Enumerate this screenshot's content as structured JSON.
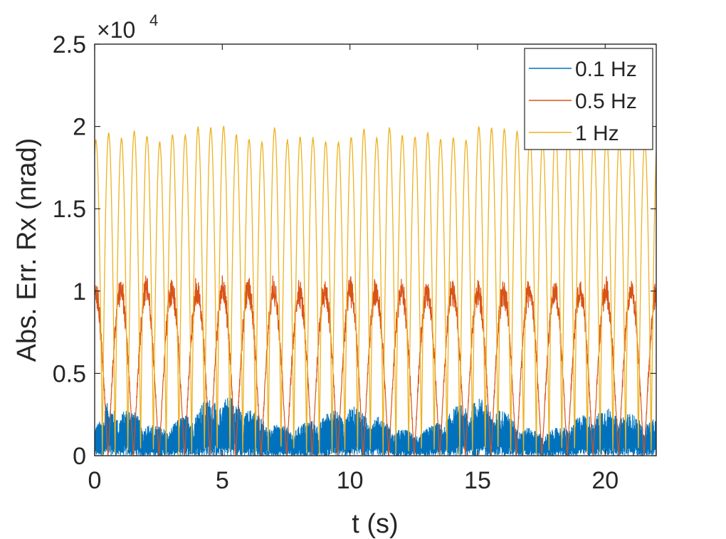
{
  "chart_data": {
    "type": "line",
    "xlabel": "t (s)",
    "ylabel": "Abs. Err. Rx (nrad)",
    "xlim": [
      0,
      22
    ],
    "ylim": [
      0,
      25000
    ],
    "xticks": [
      0,
      5,
      10,
      15,
      20
    ],
    "xtick_labels": [
      "0",
      "5",
      "10",
      "15",
      "20"
    ],
    "yticks": [
      0,
      5000,
      10000,
      15000,
      20000,
      25000
    ],
    "ytick_labels": [
      "0",
      "0.5",
      "1",
      "1.5",
      "2",
      "2.5"
    ],
    "y_exponent": {
      "base": "×10",
      "power": "4"
    },
    "grid": false,
    "legend_position": "top-right",
    "series": [
      {
        "name": "0.1 Hz",
        "color": "#0072BD",
        "envelope_peaks_x": [
          0.4,
          1.2,
          2.5,
          5.0,
          7.5,
          10.0,
          12.5,
          15.0,
          17.5,
          20.0,
          22.0
        ],
        "envelope_peaks_y": [
          3200,
          2900,
          1800,
          3700,
          1800,
          3000,
          1500,
          3500,
          1500,
          2900,
          2200
        ],
        "pattern": "noisy band oscillating between 0 and an envelope with 0.1 Hz modulation"
      },
      {
        "name": "0.5 Hz",
        "color": "#D95319",
        "period": 1.0,
        "peak": 10000,
        "peak_range": [
          9500,
          11500
        ],
        "min": 0
      },
      {
        "name": "1 Hz",
        "color": "#EDB120",
        "period": 0.5,
        "peak": 19500,
        "peak_range": [
          19000,
          20000
        ],
        "min": 0
      }
    ]
  }
}
